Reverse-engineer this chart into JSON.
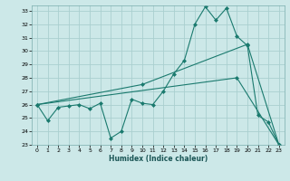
{
  "xlabel": "Humidex (Indice chaleur)",
  "bg_color": "#cce8e8",
  "line_color": "#1a7a6e",
  "grid_color": "#aacfcf",
  "xlim": [
    -0.5,
    23.5
  ],
  "ylim": [
    23,
    33.4
  ],
  "xticks": [
    0,
    1,
    2,
    3,
    4,
    5,
    6,
    7,
    8,
    9,
    10,
    11,
    12,
    13,
    14,
    15,
    16,
    17,
    18,
    19,
    20,
    21,
    22,
    23
  ],
  "yticks": [
    23,
    24,
    25,
    26,
    27,
    28,
    29,
    30,
    31,
    32,
    33
  ],
  "series1_x": [
    0,
    1,
    2,
    3,
    4,
    5,
    6,
    7,
    8,
    9,
    10,
    11,
    12,
    13,
    14,
    15,
    16,
    17,
    18,
    19,
    20,
    21,
    22,
    23
  ],
  "series1_y": [
    26.0,
    24.8,
    25.8,
    25.9,
    26.0,
    25.7,
    26.1,
    23.5,
    24.0,
    26.4,
    26.1,
    26.0,
    27.0,
    28.3,
    29.3,
    32.0,
    33.3,
    32.3,
    33.2,
    31.1,
    30.4,
    25.2,
    24.7,
    23.0
  ],
  "series2_x": [
    0,
    10,
    20,
    23
  ],
  "series2_y": [
    26.0,
    27.5,
    30.5,
    23.0
  ],
  "series3_x": [
    0,
    19,
    23
  ],
  "series3_y": [
    26.0,
    28.0,
    23.0
  ]
}
